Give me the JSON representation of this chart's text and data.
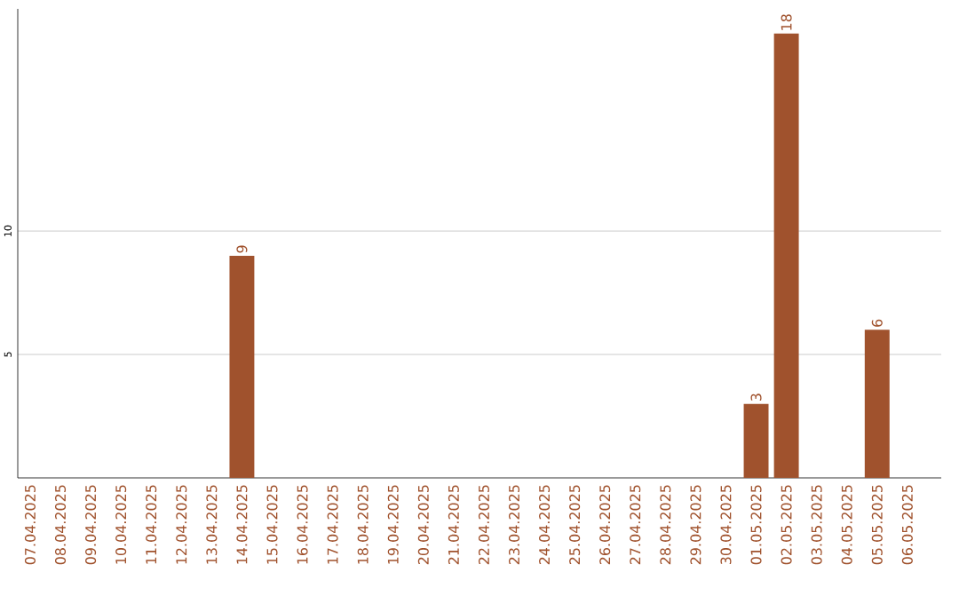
{
  "chart_data": {
    "type": "bar",
    "categories": [
      "07.04.2025",
      "08.04.2025",
      "09.04.2025",
      "10.04.2025",
      "11.04.2025",
      "12.04.2025",
      "13.04.2025",
      "14.04.2025",
      "15.04.2025",
      "16.04.2025",
      "17.04.2025",
      "18.04.2025",
      "19.04.2025",
      "20.04.2025",
      "21.04.2025",
      "22.04.2025",
      "23.04.2025",
      "24.04.2025",
      "25.04.2025",
      "26.04.2025",
      "27.04.2025",
      "28.04.2025",
      "29.04.2025",
      "30.04.2025",
      "01.05.2025",
      "02.05.2025",
      "03.05.2025",
      "04.05.2025",
      "05.05.2025",
      "06.05.2025"
    ],
    "values": [
      0,
      0,
      0,
      0,
      0,
      0,
      0,
      9,
      0,
      0,
      0,
      0,
      0,
      0,
      0,
      0,
      0,
      0,
      0,
      0,
      0,
      0,
      0,
      0,
      3,
      18,
      0,
      0,
      6,
      0
    ],
    "value_labels": [
      null,
      null,
      null,
      null,
      null,
      null,
      null,
      "9",
      null,
      null,
      null,
      null,
      null,
      null,
      null,
      null,
      null,
      null,
      null,
      null,
      null,
      null,
      null,
      null,
      "3",
      "18",
      null,
      null,
      "6",
      null
    ],
    "color": "#a0522d",
    "ylim": [
      0,
      19
    ],
    "yticks": [
      5,
      10
    ],
    "grid": "y"
  }
}
